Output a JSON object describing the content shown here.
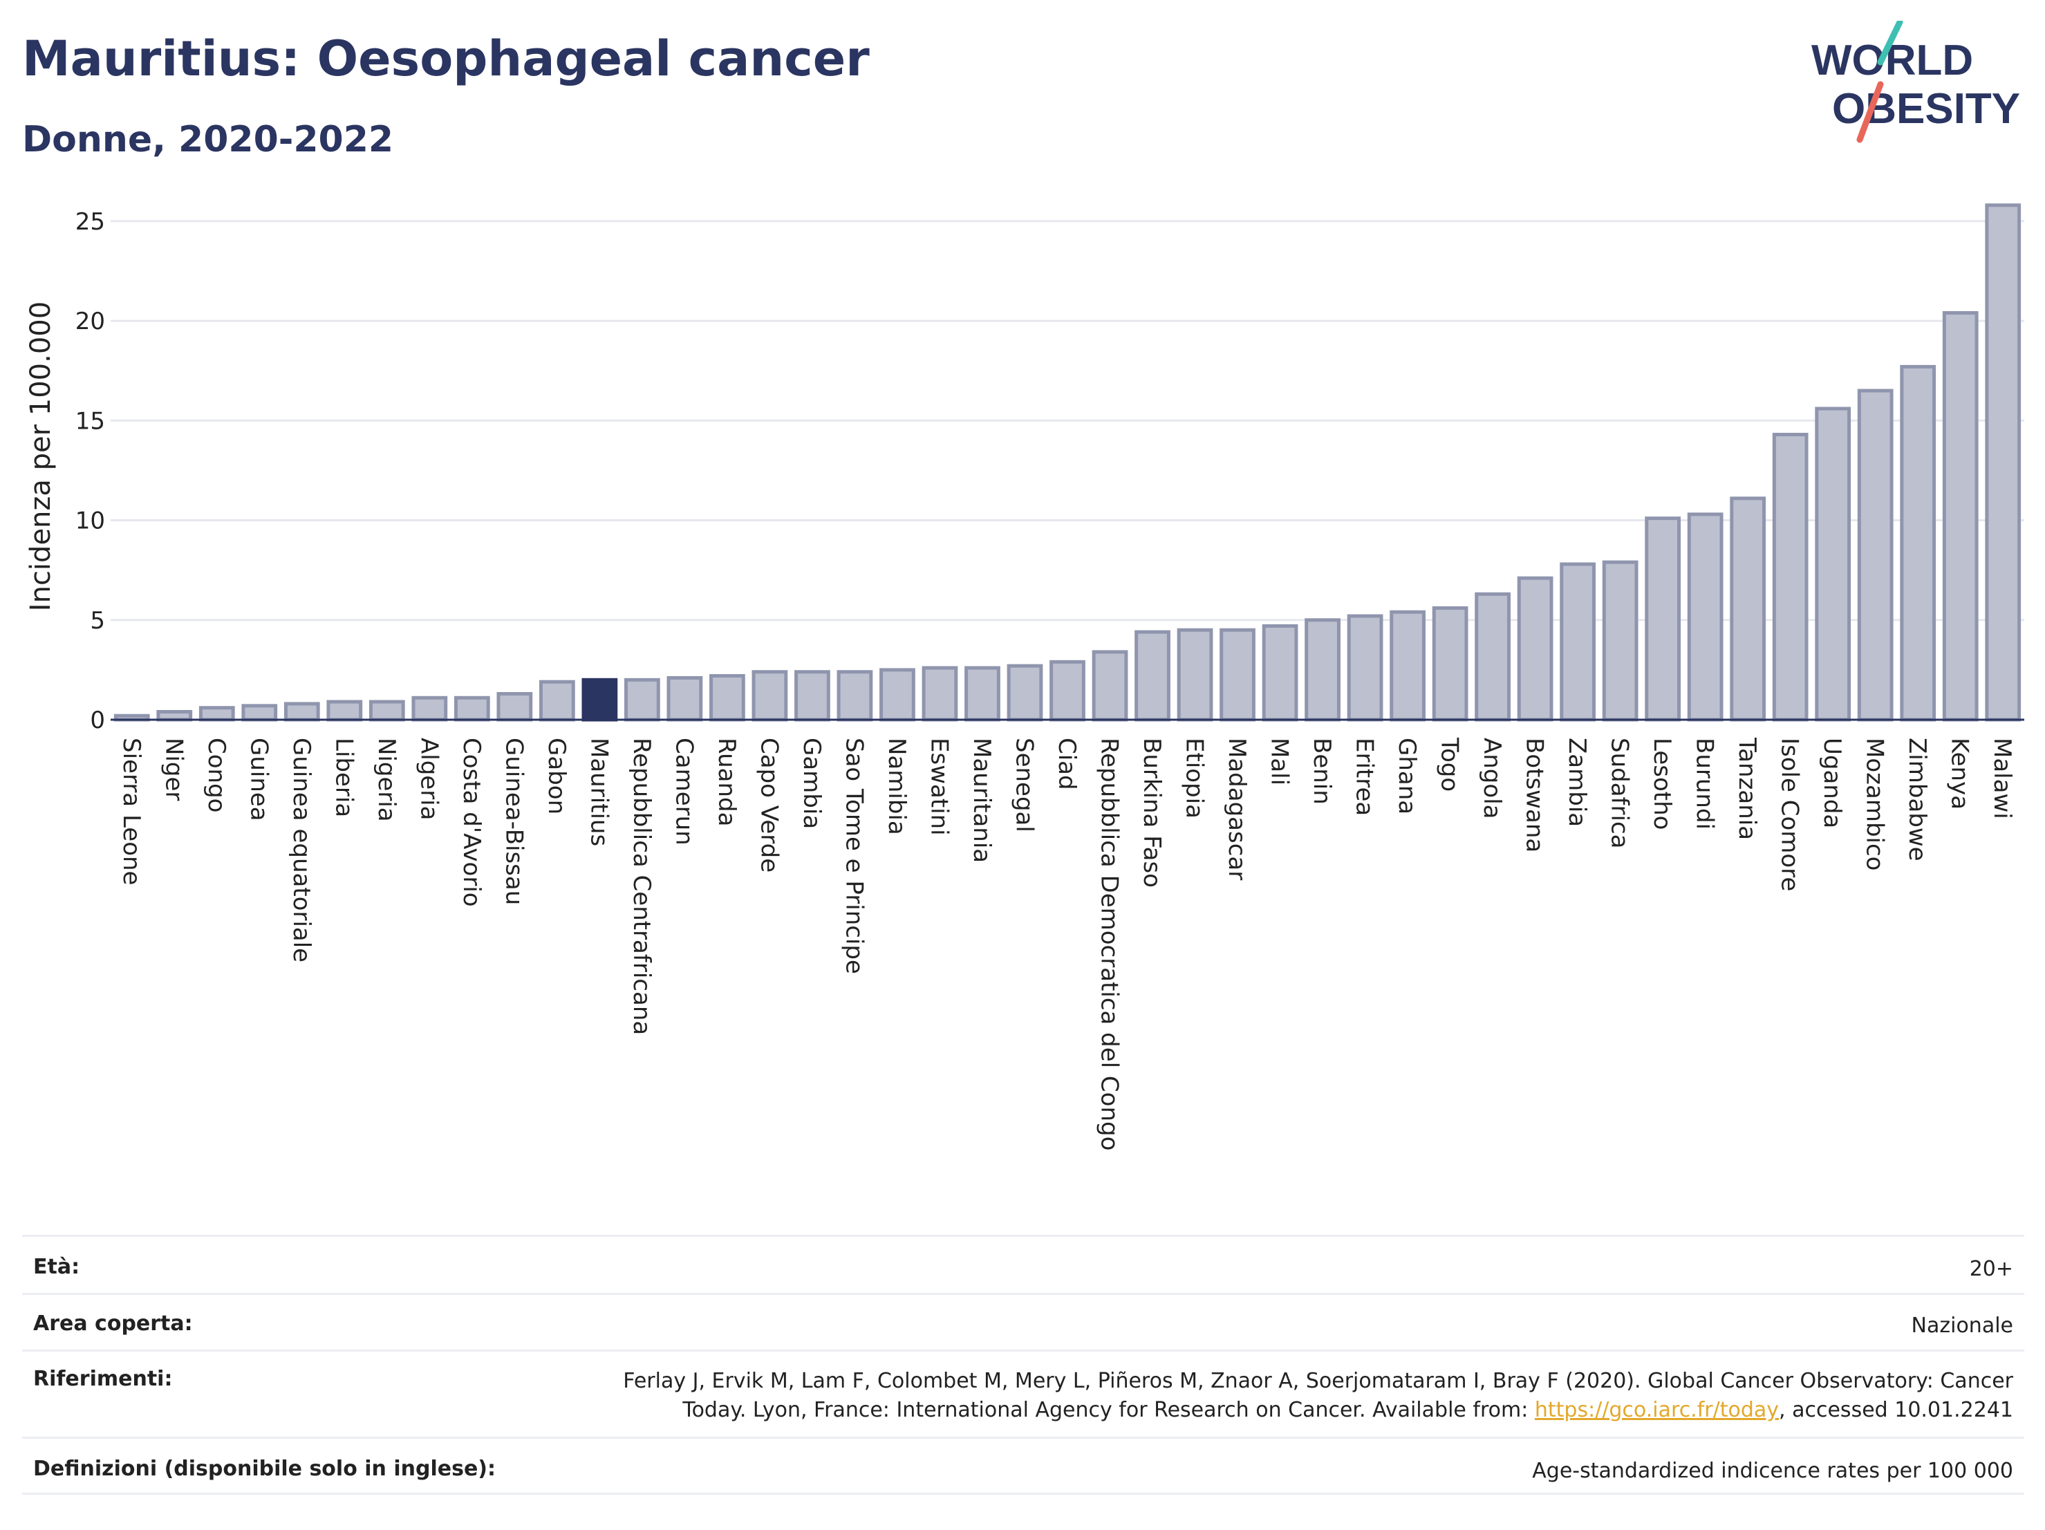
{
  "header": {
    "title": "Mauritius: Oesophageal cancer",
    "subtitle": "Donne, 2020-2022"
  },
  "logo": {
    "line1": "WORLD",
    "line2": "OBESITY",
    "accent1": "#3ebfb2",
    "accent2": "#e8675a",
    "color": "#2b3561"
  },
  "colors": {
    "bar_fill": "#bcc0cf",
    "bar_stroke": "#8f95ad",
    "highlight": "#2b3561"
  },
  "chart_data": {
    "type": "bar",
    "ylabel": "Incidenza per 100.000",
    "ylim": [
      0,
      26
    ],
    "yticks": [
      0,
      5,
      10,
      15,
      20,
      25
    ],
    "grid": true,
    "highlight": "Mauritius",
    "categories": [
      "Sierra Leone",
      "Niger",
      "Congo",
      "Guinea",
      "Guinea equatoriale",
      "Liberia",
      "Nigeria",
      "Algeria",
      "Costa d'Avorio",
      "Guinea-Bissau",
      "Gabon",
      "Mauritius",
      "Repubblica Centrafricana",
      "Camerun",
      "Ruanda",
      "Capo Verde",
      "Gambia",
      "Sao Tome e Principe",
      "Namibia",
      "Eswatini",
      "Mauritania",
      "Senegal",
      "Ciad",
      "Repubblica Democratica del Congo",
      "Burkina Faso",
      "Etiopia",
      "Madagascar",
      "Mali",
      "Benin",
      "Eritrea",
      "Ghana",
      "Togo",
      "Angola",
      "Botswana",
      "Zambia",
      "Sudafrica",
      "Lesotho",
      "Burundi",
      "Tanzania",
      "Isole Comore",
      "Uganda",
      "Mozambico",
      "Zimbabwe",
      "Kenya",
      "Malawi"
    ],
    "values": [
      0.2,
      0.4,
      0.6,
      0.7,
      0.8,
      0.9,
      0.9,
      1.1,
      1.1,
      1.3,
      1.9,
      2.0,
      2.0,
      2.1,
      2.2,
      2.4,
      2.4,
      2.4,
      2.5,
      2.6,
      2.6,
      2.7,
      2.9,
      3.4,
      4.4,
      4.5,
      4.5,
      4.7,
      5.0,
      5.2,
      5.4,
      5.6,
      6.3,
      7.1,
      7.8,
      7.9,
      10.1,
      10.3,
      11.1,
      14.3,
      15.6,
      16.5,
      17.7,
      20.4,
      25.8
    ]
  },
  "info": {
    "age_label": "Età:",
    "age_value": "20+",
    "area_label": "Area coperta:",
    "area_value": "Nazionale",
    "ref_label": "Riferimenti:",
    "ref_line1": "Ferlay J, Ervik M, Lam F, Colombet M, Mery L, Piñeros M, Znaor A, Soerjomataram I, Bray F (2020). Global Cancer Observatory: Cancer",
    "ref_line2_pre": "Today. Lyon, France: International Agency for Research on Cancer. Available from: ",
    "ref_link": "https://gco.iarc.fr/today",
    "ref_line2_post": ", accessed 10.01.2241",
    "def_label": "Definizioni (disponibile solo in inglese):",
    "def_value": "Age-standardized indicence rates per 100 000"
  }
}
